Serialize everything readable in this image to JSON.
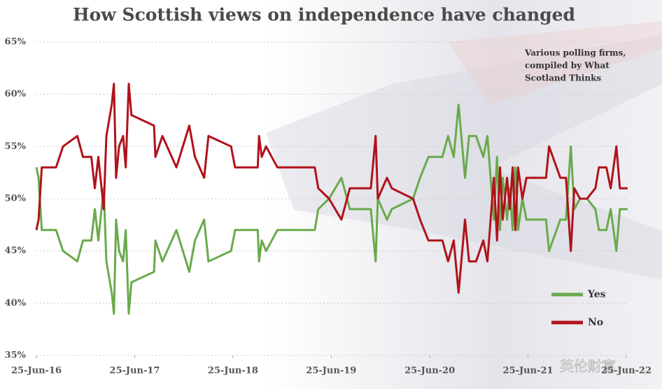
{
  "chart_data": {
    "type": "line",
    "title": "How Scottish views on independence have changed",
    "annotation": [
      "Various polling firms,",
      "compiled by What",
      "Scotland Thinks"
    ],
    "watermark": "英伦财富",
    "x": [
      "2016-06-25",
      "2016-07-03",
      "2016-07-15",
      "2016-09-06",
      "2016-10-02",
      "2016-11-24",
      "2016-12-15",
      "2017-01-15",
      "2017-01-28",
      "2017-02-10",
      "2017-03-02",
      "2017-03-12",
      "2017-04-01",
      "2017-04-09",
      "2017-04-17",
      "2017-04-28",
      "2017-05-13",
      "2017-05-23",
      "2017-06-03",
      "2017-06-13",
      "2017-09-05",
      "2017-09-10",
      "2017-10-06",
      "2017-11-27",
      "2018-01-14",
      "2018-02-04",
      "2018-03-10",
      "2018-03-26",
      "2018-06-18",
      "2018-07-03",
      "2018-09-25",
      "2018-09-30",
      "2018-10-10",
      "2018-10-26",
      "2018-12-07",
      "2019-04-25",
      "2019-05-08",
      "2019-06-17",
      "2019-08-02",
      "2019-09-02",
      "2019-11-19",
      "2019-12-07",
      "2019-12-15",
      "2020-01-18",
      "2020-02-05",
      "2020-04-24",
      "2020-05-20",
      "2020-06-20",
      "2020-08-11",
      "2020-09-01",
      "2020-09-22",
      "2020-10-10",
      "2020-11-03",
      "2020-11-18",
      "2020-12-14",
      "2021-01-10",
      "2021-01-25",
      "2021-02-18",
      "2021-03-02",
      "2021-03-13",
      "2021-03-23",
      "2021-04-08",
      "2021-04-18",
      "2021-04-29",
      "2021-05-09",
      "2021-05-19",
      "2021-06-04",
      "2021-06-19",
      "2021-08-31",
      "2021-09-11",
      "2021-10-23",
      "2021-11-13",
      "2021-12-01",
      "2021-12-14",
      "2022-01-04",
      "2022-01-30",
      "2022-03-02",
      "2022-03-15",
      "2022-04-12",
      "2022-04-28",
      "2022-05-19",
      "2022-06-01",
      "2022-06-30"
    ],
    "series": [
      {
        "name": "Yes",
        "color": "#6aaa4c",
        "values": [
          53,
          52,
          47,
          47,
          45,
          44,
          46,
          46,
          49,
          46,
          51,
          44,
          41,
          39,
          48,
          45,
          44,
          47,
          39,
          42,
          43,
          46,
          44,
          47,
          43,
          46,
          48,
          44,
          45,
          47,
          47,
          44,
          46,
          45,
          47,
          47,
          49,
          50,
          52,
          49,
          49,
          44,
          50,
          48,
          49,
          50,
          52,
          54,
          54,
          56,
          54,
          59,
          52,
          56,
          56,
          54,
          56,
          48,
          54,
          47,
          52,
          48,
          51,
          47,
          53,
          47,
          50,
          48,
          48,
          45,
          48,
          48,
          55,
          49,
          50,
          50,
          49,
          47,
          47,
          49,
          45,
          49,
          49
        ]
      },
      {
        "name": "No",
        "color": "#b0121b",
        "values": [
          47,
          48,
          53,
          53,
          55,
          56,
          54,
          54,
          51,
          54,
          49,
          56,
          59,
          61,
          52,
          55,
          56,
          53,
          61,
          58,
          57,
          54,
          56,
          53,
          57,
          54,
          52,
          56,
          55,
          53,
          53,
          56,
          54,
          55,
          53,
          53,
          51,
          50,
          48,
          51,
          51,
          56,
          50,
          52,
          51,
          50,
          48,
          46,
          46,
          44,
          46,
          41,
          48,
          44,
          44,
          46,
          44,
          52,
          46,
          53,
          48,
          52,
          49,
          53,
          47,
          53,
          50,
          52,
          52,
          55,
          52,
          52,
          45,
          51,
          50,
          50,
          51,
          53,
          53,
          51,
          55,
          51,
          51
        ]
      }
    ],
    "xlim": [
      "2016-06-25",
      "2022-06-25"
    ],
    "xticks": [
      {
        "value": "2016-06-25",
        "label": "25-Jun-16"
      },
      {
        "value": "2017-06-25",
        "label": "25-Jun-17"
      },
      {
        "value": "2018-06-25",
        "label": "25-Jun-18"
      },
      {
        "value": "2019-06-25",
        "label": "25-Jun-19"
      },
      {
        "value": "2020-06-25",
        "label": "25-Jun-20"
      },
      {
        "value": "2021-06-25",
        "label": "25-Jun-21"
      },
      {
        "value": "2022-06-25",
        "label": "25-Jun-22"
      }
    ],
    "ylim": [
      35,
      65
    ],
    "yticks": [
      {
        "value": 35,
        "label": "35%"
      },
      {
        "value": 40,
        "label": "40%"
      },
      {
        "value": 45,
        "label": "45%"
      },
      {
        "value": 50,
        "label": "50%"
      },
      {
        "value": 55,
        "label": "55%"
      },
      {
        "value": 60,
        "label": "60%"
      },
      {
        "value": 65,
        "label": "65%"
      }
    ],
    "grid": true,
    "legend": "lower right"
  }
}
